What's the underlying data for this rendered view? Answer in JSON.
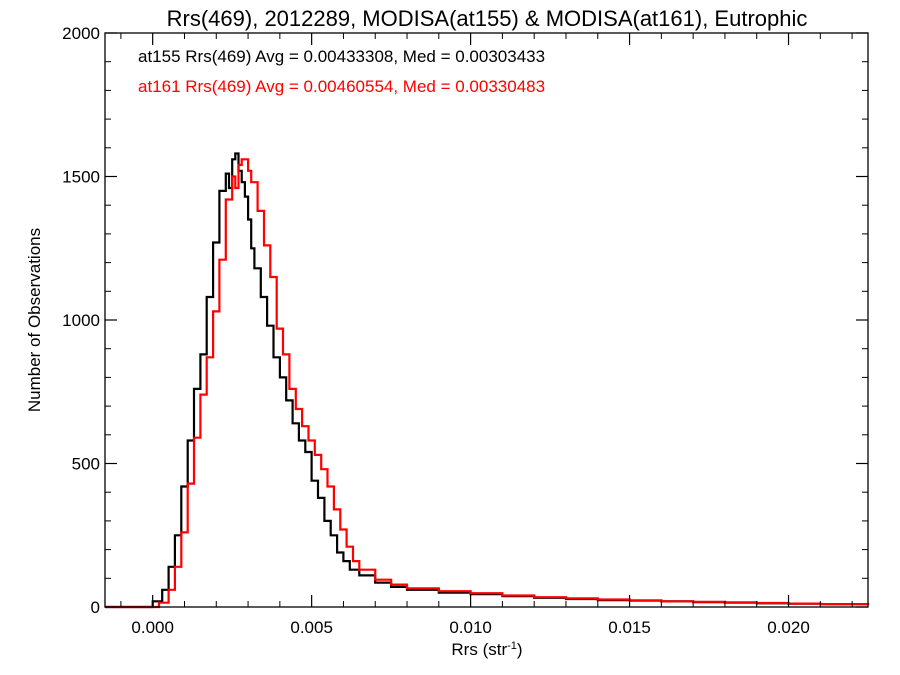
{
  "chart_data": {
    "type": "line",
    "subtype": "step-histogram",
    "title": "Rrs(469), 2012289, MODISA(at155) & MODISA(at161), Eutrophic",
    "xlabel": "Rrs (str",
    "xlabel_sup": "-1",
    "xlabel_end": ")",
    "ylabel": "Number of Observations",
    "xlim": [
      -0.0015,
      0.0225
    ],
    "ylim": [
      0,
      2000
    ],
    "xticks": [
      0.0,
      0.005,
      0.01,
      0.015,
      0.02
    ],
    "xtick_labels": [
      "0.000",
      "0.005",
      "0.010",
      "0.015",
      "0.020"
    ],
    "yticks": [
      0,
      500,
      1000,
      1500,
      2000
    ],
    "ytick_labels": [
      "0",
      "500",
      "1000",
      "1500",
      "2000"
    ],
    "grid": false,
    "legend_position": "top-left",
    "series": [
      {
        "name": "at155",
        "color": "#000000",
        "legend": "at155 Rrs(469) Avg = 0.00433308, Med = 0.00303433",
        "points": [
          [
            -0.0015,
            0
          ],
          [
            -0.0002,
            0
          ],
          [
            0.0,
            20
          ],
          [
            0.0003,
            60
          ],
          [
            0.0005,
            140
          ],
          [
            0.0007,
            250
          ],
          [
            0.0009,
            420
          ],
          [
            0.0011,
            580
          ],
          [
            0.0013,
            760
          ],
          [
            0.0015,
            880
          ],
          [
            0.0017,
            1080
          ],
          [
            0.0019,
            1270
          ],
          [
            0.0021,
            1450
          ],
          [
            0.0023,
            1510
          ],
          [
            0.0024,
            1460
          ],
          [
            0.0025,
            1560
          ],
          [
            0.0026,
            1580
          ],
          [
            0.0027,
            1520
          ],
          [
            0.0028,
            1480
          ],
          [
            0.0029,
            1430
          ],
          [
            0.003,
            1350
          ],
          [
            0.0031,
            1250
          ],
          [
            0.0032,
            1180
          ],
          [
            0.0034,
            1080
          ],
          [
            0.0036,
            980
          ],
          [
            0.0038,
            870
          ],
          [
            0.004,
            800
          ],
          [
            0.0042,
            720
          ],
          [
            0.0044,
            640
          ],
          [
            0.0046,
            580
          ],
          [
            0.0048,
            540
          ],
          [
            0.005,
            440
          ],
          [
            0.0052,
            380
          ],
          [
            0.0054,
            300
          ],
          [
            0.0056,
            250
          ],
          [
            0.0058,
            190
          ],
          [
            0.006,
            160
          ],
          [
            0.0062,
            130
          ],
          [
            0.0065,
            110
          ],
          [
            0.007,
            85
          ],
          [
            0.0075,
            70
          ],
          [
            0.008,
            60
          ],
          [
            0.009,
            50
          ],
          [
            0.01,
            45
          ],
          [
            0.011,
            38
          ],
          [
            0.012,
            32
          ],
          [
            0.013,
            28
          ],
          [
            0.014,
            24
          ],
          [
            0.015,
            22
          ],
          [
            0.016,
            20
          ],
          [
            0.017,
            17
          ],
          [
            0.018,
            15
          ],
          [
            0.019,
            13
          ],
          [
            0.02,
            12
          ],
          [
            0.021,
            10
          ],
          [
            0.0225,
            8
          ]
        ]
      },
      {
        "name": "at161",
        "color": "#ff0000",
        "legend": "at161 Rrs(469) Avg = 0.00460554, Med = 0.00330483",
        "points": [
          [
            -0.0015,
            0
          ],
          [
            0.0,
            0
          ],
          [
            0.0002,
            15
          ],
          [
            0.0005,
            60
          ],
          [
            0.0007,
            140
          ],
          [
            0.0009,
            260
          ],
          [
            0.0011,
            430
          ],
          [
            0.0013,
            590
          ],
          [
            0.0015,
            740
          ],
          [
            0.0017,
            870
          ],
          [
            0.0019,
            1030
          ],
          [
            0.0021,
            1210
          ],
          [
            0.0023,
            1420
          ],
          [
            0.0025,
            1500
          ],
          [
            0.0026,
            1460
          ],
          [
            0.0027,
            1540
          ],
          [
            0.0028,
            1560
          ],
          [
            0.0029,
            1560
          ],
          [
            0.003,
            1520
          ],
          [
            0.0031,
            1480
          ],
          [
            0.0033,
            1380
          ],
          [
            0.0035,
            1260
          ],
          [
            0.0037,
            1150
          ],
          [
            0.0039,
            970
          ],
          [
            0.0041,
            880
          ],
          [
            0.0043,
            760
          ],
          [
            0.0045,
            690
          ],
          [
            0.0047,
            630
          ],
          [
            0.0049,
            580
          ],
          [
            0.0051,
            530
          ],
          [
            0.0053,
            480
          ],
          [
            0.0055,
            420
          ],
          [
            0.0057,
            340
          ],
          [
            0.0059,
            270
          ],
          [
            0.0061,
            210
          ],
          [
            0.0063,
            160
          ],
          [
            0.0065,
            130
          ],
          [
            0.007,
            95
          ],
          [
            0.0075,
            78
          ],
          [
            0.008,
            65
          ],
          [
            0.009,
            55
          ],
          [
            0.01,
            48
          ],
          [
            0.011,
            40
          ],
          [
            0.012,
            34
          ],
          [
            0.013,
            30
          ],
          [
            0.014,
            26
          ],
          [
            0.015,
            23
          ],
          [
            0.016,
            20
          ],
          [
            0.017,
            18
          ],
          [
            0.018,
            16
          ],
          [
            0.019,
            14
          ],
          [
            0.02,
            12
          ],
          [
            0.021,
            10
          ],
          [
            0.0225,
            8
          ]
        ]
      }
    ]
  }
}
